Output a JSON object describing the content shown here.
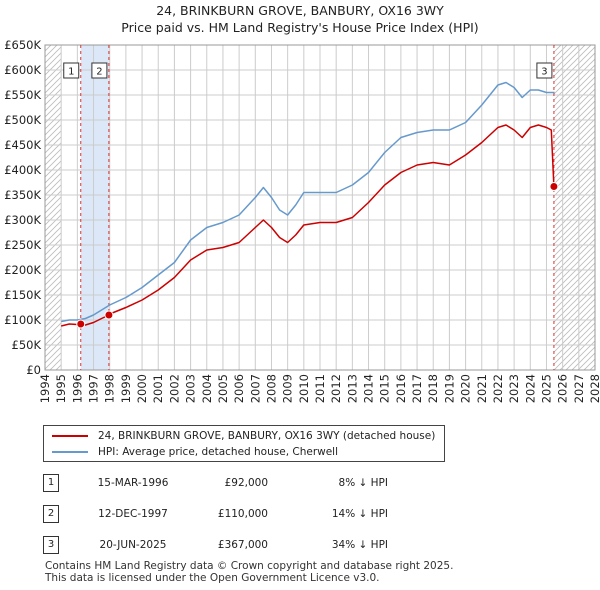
{
  "title_line1": "24, BRINKBURN GROVE, BANBURY, OX16 3WY",
  "title_line2": "Price paid vs. HM Land Registry's House Price Index (HPI)",
  "colors": {
    "property": "#cc0000",
    "hpi": "#6699cc",
    "shade": "#dce8f7",
    "grid": "#cccccc"
  },
  "chart_data": {
    "type": "line",
    "ylim": [
      0,
      650000
    ],
    "xlim": [
      1994,
      2028
    ],
    "y_ticks": [
      "£0",
      "£50K",
      "£100K",
      "£150K",
      "£200K",
      "£250K",
      "£300K",
      "£350K",
      "£400K",
      "£450K",
      "£500K",
      "£550K",
      "£600K",
      "£650K"
    ],
    "y_tick_values": [
      0,
      50000,
      100000,
      150000,
      200000,
      250000,
      300000,
      350000,
      400000,
      450000,
      500000,
      550000,
      600000,
      650000
    ],
    "x_ticks": [
      "1994",
      "1995",
      "1996",
      "1997",
      "1998",
      "1999",
      "2000",
      "2001",
      "2002",
      "2003",
      "2004",
      "2005",
      "2006",
      "2007",
      "2008",
      "2009",
      "2010",
      "2011",
      "2012",
      "2013",
      "2014",
      "2015",
      "2016",
      "2017",
      "2018",
      "2019",
      "2020",
      "2021",
      "2022",
      "2023",
      "2024",
      "2025",
      "2026",
      "2027",
      "2028"
    ],
    "data_range": [
      1995,
      2025.5
    ],
    "series": [
      {
        "name": "24, BRINKBURN GROVE, BANBURY, OX16 3WY (detached house)",
        "color": "#cc0000",
        "x": [
          1995,
          1995.5,
          1996,
          1996.2,
          1996.5,
          1997,
          1997.5,
          1997.95,
          1998,
          1999,
          2000,
          2001,
          2002,
          2003,
          2004,
          2005,
          2006,
          2007,
          2007.5,
          2008,
          2008.5,
          2009,
          2009.5,
          2010,
          2011,
          2012,
          2013,
          2014,
          2015,
          2016,
          2017,
          2018,
          2019,
          2020,
          2021,
          2022,
          2022.5,
          2023,
          2023.5,
          2024,
          2024.5,
          2025,
          2025.3,
          2025.46
        ],
        "y": [
          88000,
          92000,
          91000,
          92000,
          90000,
          95000,
          103000,
          110000,
          112000,
          125000,
          140000,
          160000,
          185000,
          220000,
          240000,
          245000,
          255000,
          285000,
          300000,
          285000,
          265000,
          255000,
          270000,
          290000,
          295000,
          295000,
          305000,
          335000,
          370000,
          395000,
          410000,
          415000,
          410000,
          430000,
          455000,
          485000,
          490000,
          480000,
          465000,
          485000,
          490000,
          485000,
          480000,
          367000
        ]
      },
      {
        "name": "HPI: Average price, detached house, Cherwell",
        "color": "#6699cc",
        "x": [
          1995,
          1995.5,
          1996,
          1996.5,
          1997,
          1997.5,
          1998,
          1999,
          2000,
          2001,
          2002,
          2003,
          2004,
          2005,
          2006,
          2007,
          2007.5,
          2008,
          2008.5,
          2009,
          2009.5,
          2010,
          2011,
          2012,
          2013,
          2014,
          2015,
          2016,
          2017,
          2018,
          2019,
          2020,
          2021,
          2022,
          2022.5,
          2023,
          2023.5,
          2024,
          2024.5,
          2025,
          2025.5
        ],
        "y": [
          97000,
          100000,
          100000,
          103000,
          110000,
          120000,
          130000,
          145000,
          165000,
          190000,
          215000,
          260000,
          285000,
          295000,
          310000,
          345000,
          365000,
          345000,
          320000,
          310000,
          330000,
          355000,
          355000,
          355000,
          370000,
          395000,
          435000,
          465000,
          475000,
          480000,
          480000,
          495000,
          530000,
          570000,
          575000,
          565000,
          545000,
          560000,
          560000,
          555000,
          555000
        ]
      }
    ],
    "transactions": [
      {
        "label": "1",
        "year": 1996.21,
        "price": 92000
      },
      {
        "label": "2",
        "year": 1997.95,
        "price": 110000
      },
      {
        "label": "3",
        "year": 2025.46,
        "price": 367000
      }
    ],
    "shaded_period": [
      1996.21,
      1997.95
    ],
    "hatched_future_start": 2025.46
  },
  "legend": {
    "property": "24, BRINKBURN GROVE, BANBURY, OX16 3WY (detached house)",
    "hpi": "HPI: Average price, detached house, Cherwell"
  },
  "transactions_table": [
    {
      "num": "1",
      "date": "15-MAR-1996",
      "price": "£92,000",
      "hpi": "8% ↓ HPI"
    },
    {
      "num": "2",
      "date": "12-DEC-1997",
      "price": "£110,000",
      "hpi": "14% ↓ HPI"
    },
    {
      "num": "3",
      "date": "20-JUN-2025",
      "price": "£367,000",
      "hpi": "34% ↓ HPI"
    }
  ],
  "footer_line1": "Contains HM Land Registry data © Crown copyright and database right 2025.",
  "footer_line2": "This data is licensed under the Open Government Licence v3.0."
}
